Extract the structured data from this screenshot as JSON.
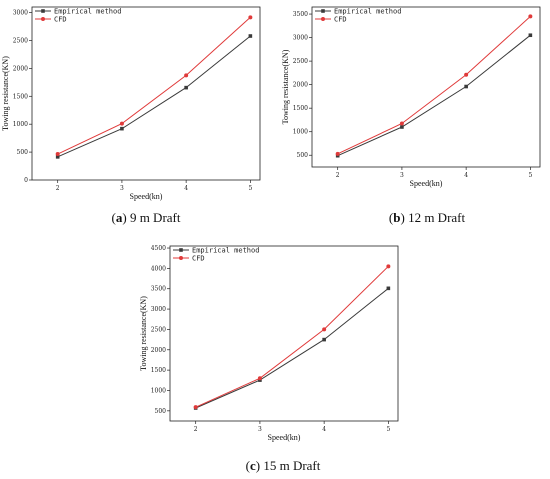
{
  "colors": {
    "empirical": "#3a3a3a",
    "cfd": "#e03a3a"
  },
  "chart_data": [
    {
      "type": "line",
      "caption": {
        "letter": "a",
        "rest": " 9 m Draft"
      },
      "xlabel": "Speed(kn)",
      "ylabel": "Towing resistance(KN)",
      "x": [
        2,
        3,
        4,
        5
      ],
      "xlim": [
        1.6,
        5.15
      ],
      "ylim": [
        0,
        3100
      ],
      "yticks": [
        0,
        500,
        1000,
        1500,
        2000,
        2500,
        3000
      ],
      "legend": "top-left",
      "series": [
        {
          "name": "Empirical method",
          "marker": "square",
          "color": "#3a3a3a",
          "values": [
            415,
            920,
            1655,
            2580
          ]
        },
        {
          "name": "CFD",
          "marker": "circle",
          "color": "#e03a3a",
          "values": [
            465,
            1010,
            1875,
            2915
          ]
        }
      ]
    },
    {
      "type": "line",
      "caption": {
        "letter": "b",
        "rest": " 12 m Draft"
      },
      "xlabel": "Speed(kn)",
      "ylabel": "Towing resistance(KN)",
      "x": [
        2,
        3,
        4,
        5
      ],
      "xlim": [
        1.6,
        5.15
      ],
      "ylim": [
        250,
        3650
      ],
      "yticks": [
        500,
        1000,
        1500,
        2000,
        2500,
        3000,
        3500
      ],
      "legend": "top-left",
      "series": [
        {
          "name": "Empirical method",
          "marker": "square",
          "color": "#3a3a3a",
          "values": [
            490,
            1100,
            1960,
            3050
          ]
        },
        {
          "name": "CFD",
          "marker": "circle",
          "color": "#e03a3a",
          "values": [
            530,
            1175,
            2210,
            3450
          ]
        }
      ]
    },
    {
      "type": "line",
      "caption": {
        "letter": "c",
        "rest": " 15 m Draft"
      },
      "xlabel": "Speed(kn)",
      "ylabel": "Towing resistance(KN)",
      "x": [
        2,
        3,
        4,
        5
      ],
      "xlim": [
        1.6,
        5.15
      ],
      "ylim": [
        250,
        4550
      ],
      "yticks": [
        500,
        1000,
        1500,
        2000,
        2500,
        3000,
        3500,
        4000,
        4500
      ],
      "legend": "top-left",
      "series": [
        {
          "name": "Empirical method",
          "marker": "square",
          "color": "#3a3a3a",
          "values": [
            570,
            1255,
            2250,
            3510
          ]
        },
        {
          "name": "CFD",
          "marker": "circle",
          "color": "#e03a3a",
          "values": [
            590,
            1300,
            2500,
            4050
          ]
        }
      ]
    }
  ]
}
